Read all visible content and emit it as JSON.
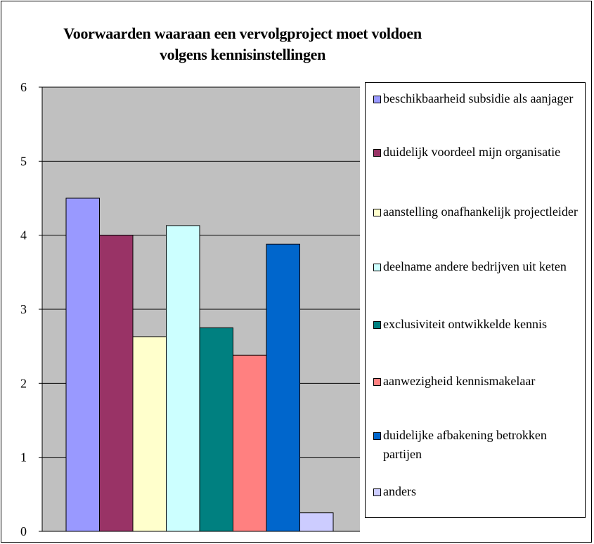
{
  "chart_data": {
    "type": "bar",
    "title_lines": [
      "Voorwaarden waaraan een vervolgproject moet voldoen",
      "volgens kennisinstellingen"
    ],
    "title": "Voorwaarden waaraan een vervolgproject moet voldoen volgens kennisinstellingen",
    "xlabel": "",
    "ylabel": "",
    "ylim": [
      0,
      6
    ],
    "yticks": [
      "0",
      "1",
      "2",
      "3",
      "4",
      "5",
      "6"
    ],
    "grid": true,
    "legend_position": "right",
    "plot_background": "#c0c0c0",
    "series": [
      {
        "name": "beschikbaarheid subsidie als aanjager",
        "value": 4.5,
        "color": "#9999ff"
      },
      {
        "name": "duidelijk voordeel mijn organisatie",
        "value": 4.0,
        "color": "#993366"
      },
      {
        "name": "aanstelling onafhankelijk projectleider",
        "value": 2.63,
        "color": "#ffffcc"
      },
      {
        "name": "deelname andere bedrijven uit keten",
        "value": 4.13,
        "color": "#ccffff"
      },
      {
        "name": "exclusiviteit ontwikkelde kennis",
        "value": 2.75,
        "color": "#008080"
      },
      {
        "name": "aanwezigheid kennismakelaar",
        "value": 2.38,
        "color": "#ff8080"
      },
      {
        "name": "duidelijke afbakening betrokken partijen",
        "value": 3.88,
        "color": "#0066cc"
      },
      {
        "name": "anders",
        "value": 0.25,
        "color": "#ccccff"
      }
    ]
  }
}
